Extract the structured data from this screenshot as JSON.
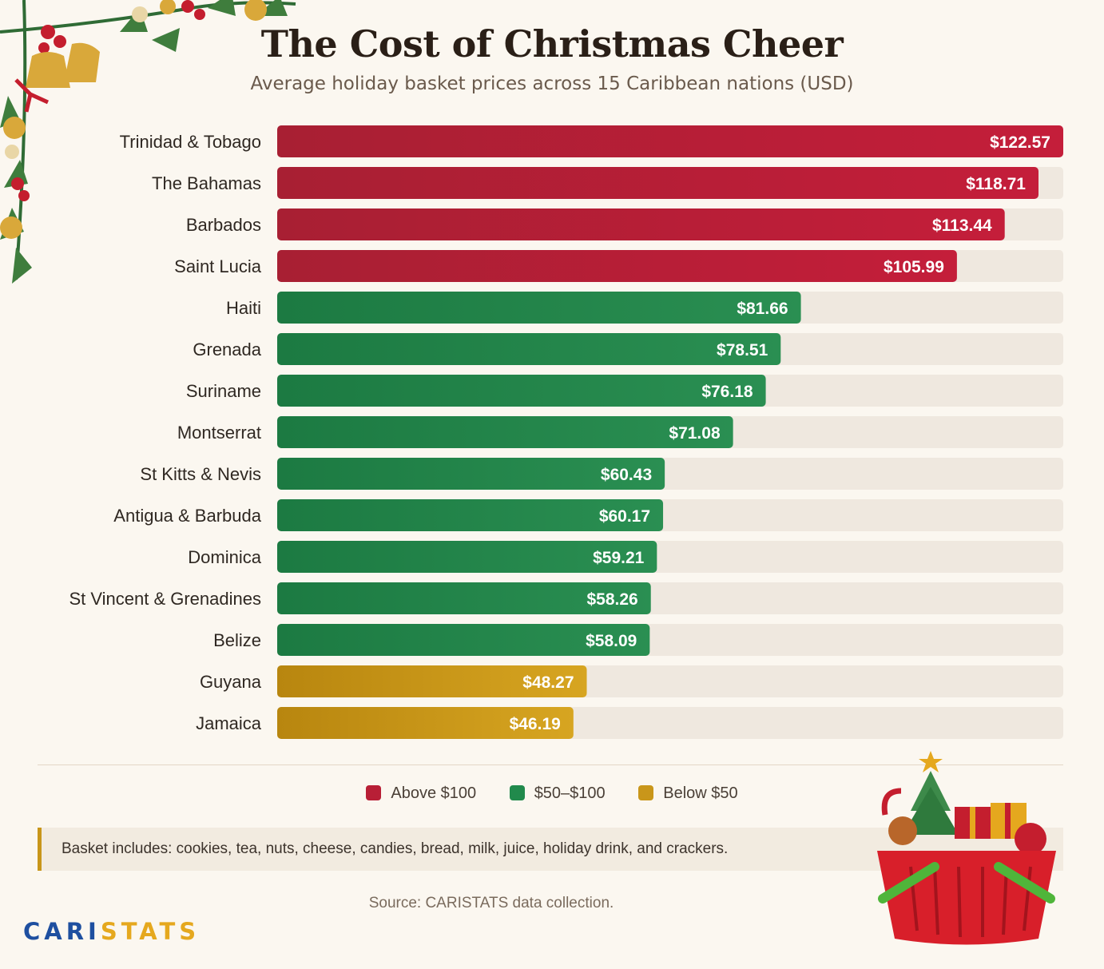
{
  "title": "The Cost of Christmas Cheer",
  "subtitle": "Average holiday basket prices across 15 Caribbean nations (USD)",
  "chart_data": {
    "type": "bar",
    "orientation": "horizontal",
    "categories": [
      "Trinidad & Tobago",
      "The Bahamas",
      "Barbados",
      "Saint Lucia",
      "Haiti",
      "Grenada",
      "Suriname",
      "Montserrat",
      "St Kitts & Nevis",
      "Antigua & Barbuda",
      "Dominica",
      "St Vincent & Grenadines",
      "Belize",
      "Guyana",
      "Jamaica"
    ],
    "values": [
      122.57,
      118.71,
      113.44,
      105.99,
      81.66,
      78.51,
      76.18,
      71.08,
      60.43,
      60.17,
      59.21,
      58.26,
      58.09,
      48.27,
      46.19
    ],
    "value_labels": [
      "$122.57",
      "$118.71",
      "$113.44",
      "$105.99",
      "$81.66",
      "$78.51",
      "$76.18",
      "$71.08",
      "$60.43",
      "$60.17",
      "$59.21",
      "$58.26",
      "$58.09",
      "$48.27",
      "$46.19"
    ],
    "groups": [
      "above",
      "above",
      "above",
      "above",
      "mid",
      "mid",
      "mid",
      "mid",
      "mid",
      "mid",
      "mid",
      "mid",
      "mid",
      "below",
      "below"
    ],
    "xlim": [
      0,
      122.57
    ],
    "grid": false,
    "legend_position": "bottom-center",
    "colors": {
      "above": "#b81f36",
      "mid": "#218a4c",
      "below": "#c9961a",
      "track": "#efe8df"
    }
  },
  "legend": {
    "items": [
      {
        "label": "Above $100",
        "color": "#b81f36"
      },
      {
        "label": "$50–$100",
        "color": "#218a4c"
      },
      {
        "label": "Below $50",
        "color": "#c9961a"
      }
    ]
  },
  "note": "Basket includes: cookies, tea, nuts, cheese, candies, bread, milk, juice, holiday drink, and crackers.",
  "source": "Source: CARISTATS data collection.",
  "brand": {
    "part1": "CARI",
    "part2": "STATS"
  },
  "decorations": {
    "top_left": "holly-garland-icon",
    "bottom_right": "christmas-basket-icon"
  }
}
